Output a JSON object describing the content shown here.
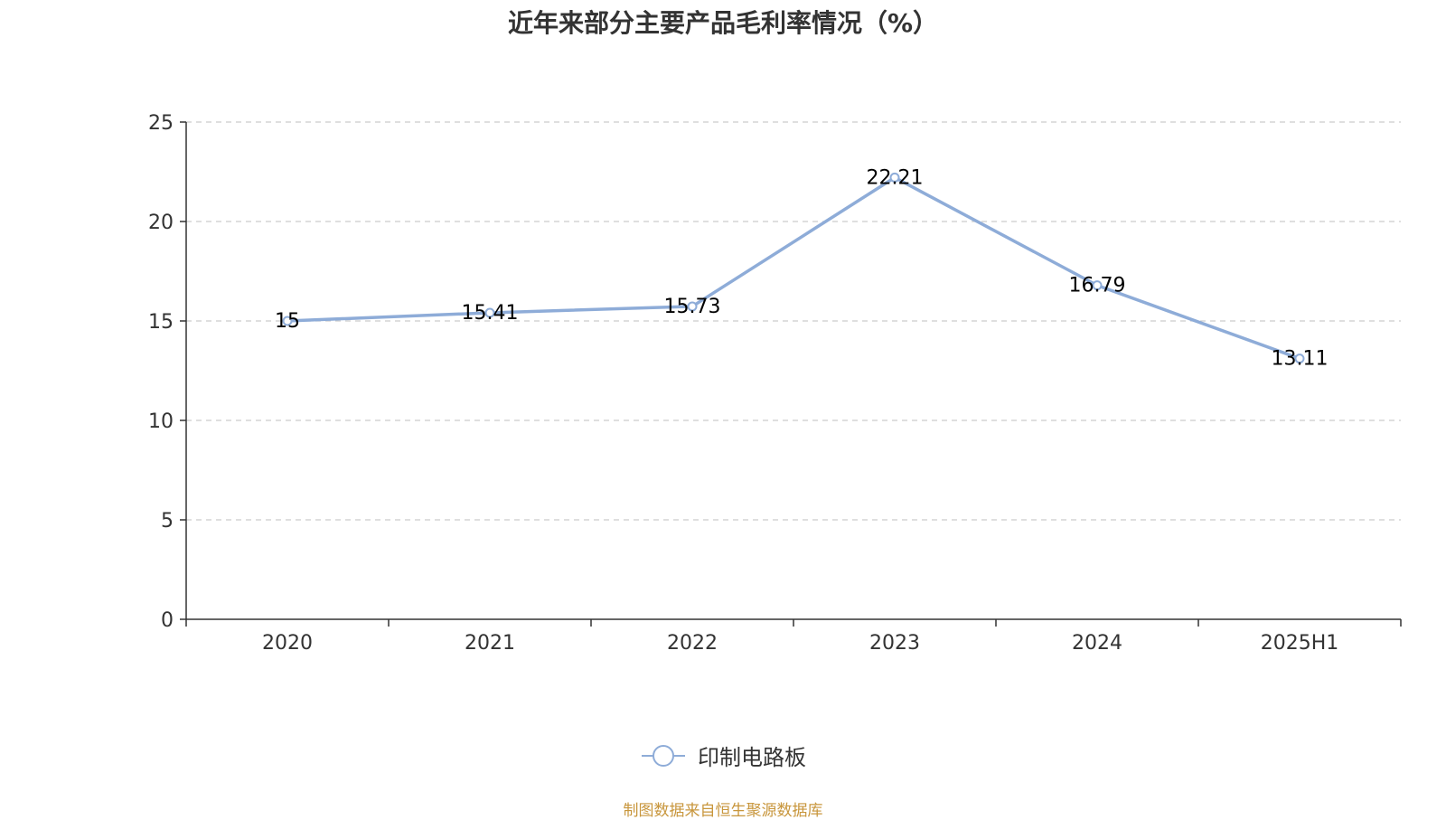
{
  "chart_data": {
    "type": "line",
    "title": "近年来部分主要产品毛利率情况（%）",
    "xlabel": "",
    "ylabel": "",
    "categories": [
      "2020",
      "2021",
      "2022",
      "2023",
      "2024",
      "2025H1"
    ],
    "series": [
      {
        "name": "印制电路板",
        "values": [
          15,
          15.41,
          15.73,
          22.21,
          16.79,
          13.11
        ],
        "labels": [
          "15",
          "15.41",
          "15.73",
          "22.21",
          "16.79",
          "13.11"
        ]
      }
    ],
    "ylim": [
      0,
      25
    ],
    "yticks": [
      0,
      5,
      10,
      15,
      20,
      25
    ],
    "grid": "horizontal-dashed",
    "legend_position": "bottom-center",
    "colors": {
      "series": "#8eacd8",
      "axis": "#333333",
      "grid": "#cccccc",
      "source": "#c8963c"
    }
  },
  "footer": {
    "source": "制图数据来自恒生聚源数据库"
  }
}
